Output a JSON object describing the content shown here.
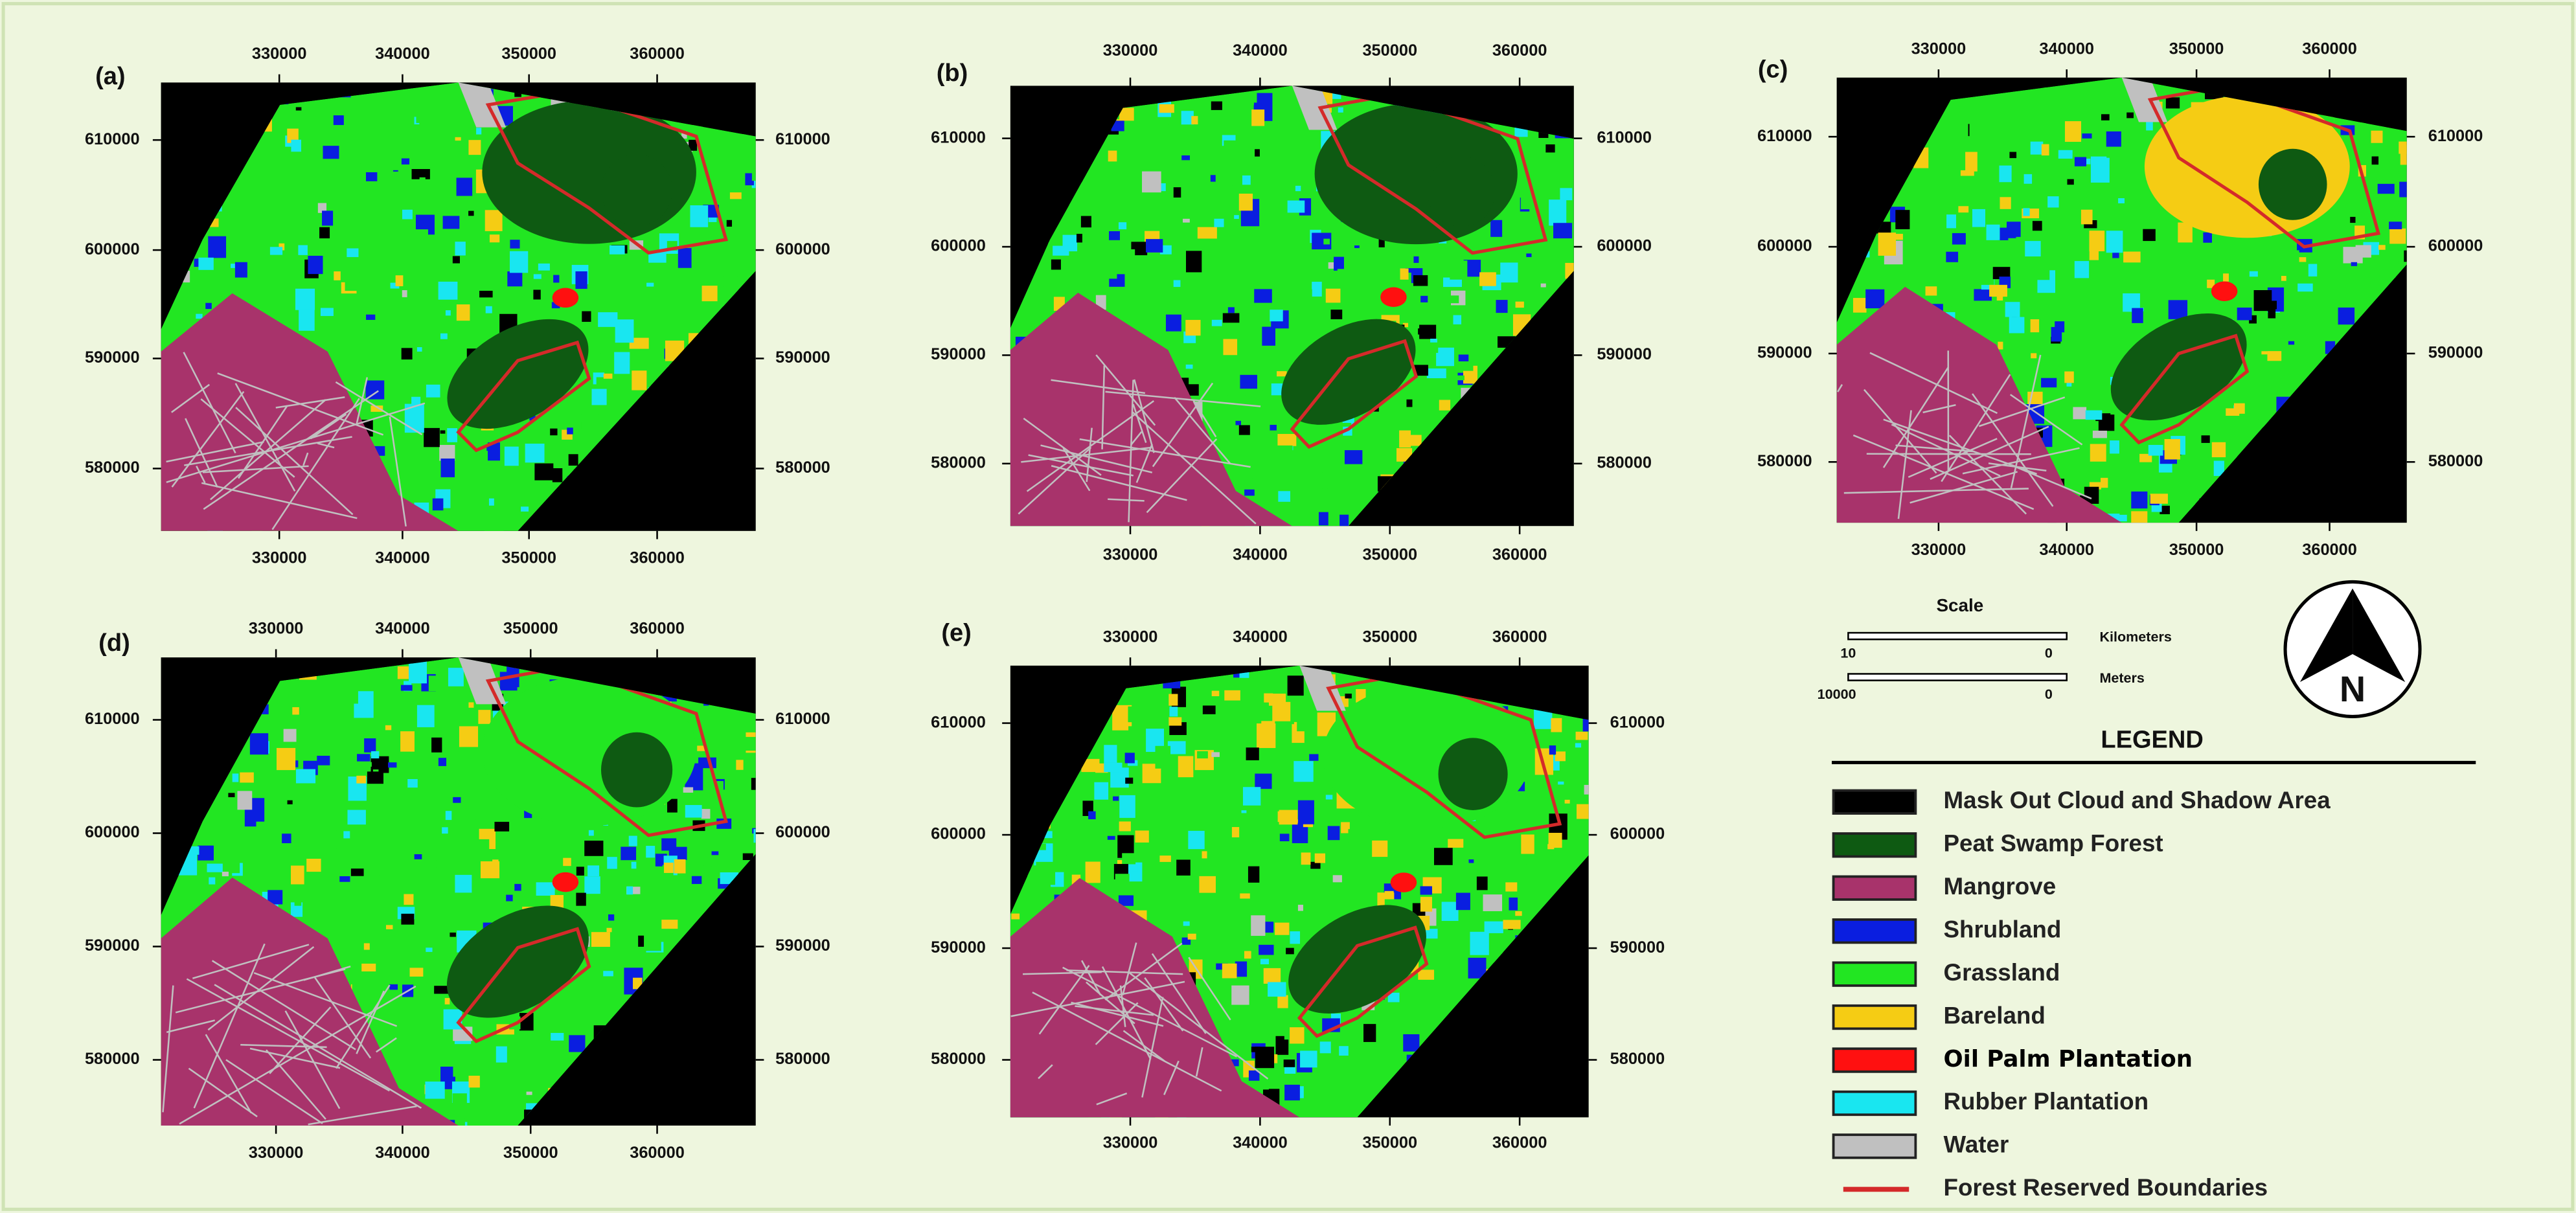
{
  "panels": [
    {
      "label": "(a)",
      "xticks": [
        "330000",
        "340000",
        "350000",
        "360000"
      ],
      "yticks": [
        "610000",
        "600000",
        "590000",
        "580000"
      ]
    },
    {
      "label": "(b)",
      "xticks": [
        "330000",
        "340000",
        "350000",
        "360000"
      ],
      "yticks": [
        "610000",
        "600000",
        "590000",
        "580000"
      ]
    },
    {
      "label": "(c)",
      "xticks": [
        "330000",
        "340000",
        "350000",
        "360000"
      ],
      "yticks": [
        "610000",
        "600000",
        "590000",
        "580000"
      ]
    },
    {
      "label": "(d)",
      "xticks": [
        "330000",
        "340000",
        "350000",
        "360000"
      ],
      "yticks": [
        "610000",
        "600000",
        "590000",
        "580000"
      ]
    },
    {
      "label": "(e)",
      "xticks": [
        "330000",
        "340000",
        "350000",
        "360000"
      ],
      "yticks": [
        "610000",
        "600000",
        "590000",
        "580000"
      ]
    }
  ],
  "scale": {
    "title": "Scale",
    "km_label": "Kilometers",
    "km_ticks": [
      "10",
      "0"
    ],
    "m_label": "Meters",
    "m_ticks": [
      "10000",
      "0"
    ]
  },
  "north": "N",
  "legend": {
    "title": "LEGEND",
    "items": [
      {
        "label": "Mask Out Cloud and Shadow  Area",
        "color": "#000000"
      },
      {
        "label": "Peat Swamp Forest",
        "color": "#0e5a12"
      },
      {
        "label": "Mangrove",
        "color": "#a8336b"
      },
      {
        "label": "Shrubland",
        "color": "#0a1ee0"
      },
      {
        "label": "Grassland",
        "color": "#22e622"
      },
      {
        "label": "Bareland",
        "color": "#f5cc14"
      },
      {
        "label": "Oil Palm Plantation",
        "color": "#ff1010"
      },
      {
        "label": "Rubber Plantation",
        "color": "#19e6f0"
      },
      {
        "label": "Water",
        "color": "#c0c0c0"
      },
      {
        "label": "Forest Reserved Boundaries",
        "color": "#d42a2a"
      }
    ]
  }
}
